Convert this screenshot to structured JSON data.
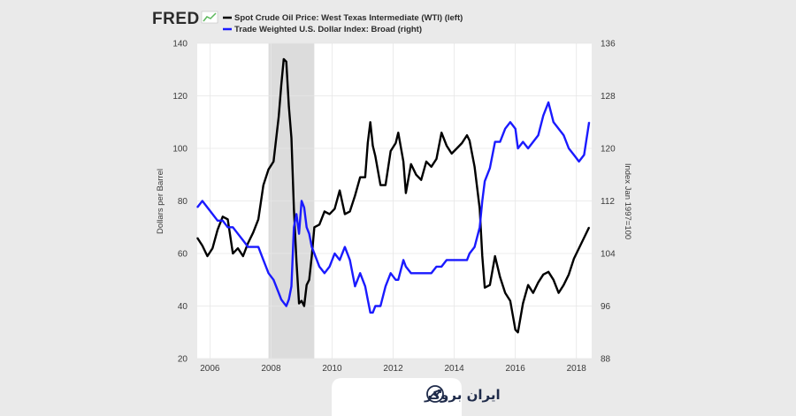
{
  "header": {
    "logo_text": "FRED",
    "legend": [
      {
        "label": "Spot Crude Oil Price: West Texas Intermediate (WTI) (left)",
        "color": "#000000"
      },
      {
        "label": "Trade Weighted U.S. Dollar Index: Broad (right)",
        "color": "#1a1aff"
      }
    ]
  },
  "badge": {
    "text": "ایران بروکر",
    "icon": "growth-chart-icon"
  },
  "chart_data": {
    "type": "line",
    "ylabel_left": "Dollars per Barrel",
    "ylabel_right": "Index Jan 1997=100",
    "x_ticks": [
      "2006",
      "2008",
      "2010",
      "2012",
      "2014",
      "2016",
      "2018"
    ],
    "y_left_ticks": [
      "20",
      "40",
      "60",
      "80",
      "100",
      "120",
      "140"
    ],
    "y_right_ticks": [
      "88",
      "96",
      "104",
      "112",
      "120",
      "128",
      "136"
    ],
    "xlim": [
      "2005-08",
      "2018-07"
    ],
    "ylim_left": [
      20,
      140
    ],
    "ylim_right": [
      88,
      136
    ],
    "recession": {
      "start": "2007-12",
      "end": "2009-06"
    },
    "series": [
      {
        "name": "Spot Crude Oil Price: West Texas Intermediate (WTI) (left)",
        "axis": "left",
        "color": "#000000",
        "x": [
          "2005-08",
          "2005-10",
          "2005-12",
          "2006-02",
          "2006-04",
          "2006-06",
          "2006-08",
          "2006-10",
          "2006-12",
          "2007-02",
          "2007-04",
          "2007-06",
          "2007-08",
          "2007-10",
          "2007-12",
          "2008-02",
          "2008-04",
          "2008-05",
          "2008-06",
          "2008-07",
          "2008-08",
          "2008-09",
          "2008-10",
          "2008-11",
          "2008-12",
          "2009-01",
          "2009-02",
          "2009-03",
          "2009-04",
          "2009-05",
          "2009-06",
          "2009-08",
          "2009-10",
          "2009-12",
          "2010-02",
          "2010-04",
          "2010-06",
          "2010-08",
          "2010-10",
          "2010-12",
          "2011-02",
          "2011-03",
          "2011-04",
          "2011-05",
          "2011-06",
          "2011-08",
          "2011-10",
          "2011-12",
          "2012-02",
          "2012-03",
          "2012-05",
          "2012-06",
          "2012-08",
          "2012-10",
          "2012-12",
          "2013-02",
          "2013-04",
          "2013-06",
          "2013-08",
          "2013-10",
          "2013-12",
          "2014-02",
          "2014-04",
          "2014-06",
          "2014-07",
          "2014-09",
          "2014-11",
          "2014-12",
          "2015-01",
          "2015-03",
          "2015-05",
          "2015-07",
          "2015-09",
          "2015-11",
          "2016-01",
          "2016-02",
          "2016-04",
          "2016-06",
          "2016-08",
          "2016-10",
          "2016-12",
          "2017-02",
          "2017-04",
          "2017-06",
          "2017-08",
          "2017-10",
          "2017-12",
          "2018-02",
          "2018-04",
          "2018-06"
        ],
        "values": [
          66,
          63,
          59,
          62,
          69,
          74,
          73,
          60,
          62,
          59,
          64,
          68,
          73,
          86,
          92,
          95,
          112,
          124,
          134,
          133,
          116,
          104,
          77,
          57,
          41,
          42,
          40,
          48,
          50,
          59,
          70,
          71,
          76,
          75,
          77,
          84,
          75,
          76,
          82,
          89,
          89,
          102,
          110,
          101,
          97,
          86,
          86,
          99,
          102,
          106,
          95,
          83,
          94,
          90,
          88,
          95,
          93,
          96,
          106,
          101,
          98,
          100,
          102,
          105,
          103,
          93,
          77,
          59,
          47,
          48,
          59,
          51,
          45,
          42,
          31,
          30,
          41,
          48,
          45,
          49,
          52,
          53,
          50,
          45,
          48,
          52,
          58,
          62,
          66,
          70
        ]
      },
      {
        "name": "Trade Weighted U.S. Dollar Index: Broad (right)",
        "axis": "right",
        "color": "#1a1aff",
        "x": [
          "2005-08",
          "2005-10",
          "2005-12",
          "2006-02",
          "2006-04",
          "2006-06",
          "2006-08",
          "2006-10",
          "2006-12",
          "2007-02",
          "2007-04",
          "2007-06",
          "2007-08",
          "2007-10",
          "2007-12",
          "2008-02",
          "2008-04",
          "2008-05",
          "2008-06",
          "2008-07",
          "2008-08",
          "2008-09",
          "2008-10",
          "2008-11",
          "2008-12",
          "2009-01",
          "2009-02",
          "2009-03",
          "2009-04",
          "2009-05",
          "2009-06",
          "2009-08",
          "2009-10",
          "2009-12",
          "2010-02",
          "2010-04",
          "2010-06",
          "2010-08",
          "2010-10",
          "2010-12",
          "2011-02",
          "2011-03",
          "2011-04",
          "2011-05",
          "2011-06",
          "2011-08",
          "2011-10",
          "2011-12",
          "2012-02",
          "2012-03",
          "2012-05",
          "2012-06",
          "2012-08",
          "2012-10",
          "2012-12",
          "2013-02",
          "2013-04",
          "2013-06",
          "2013-08",
          "2013-10",
          "2013-12",
          "2014-02",
          "2014-04",
          "2014-06",
          "2014-07",
          "2014-09",
          "2014-11",
          "2014-12",
          "2015-01",
          "2015-03",
          "2015-05",
          "2015-07",
          "2015-09",
          "2015-11",
          "2016-01",
          "2016-02",
          "2016-04",
          "2016-06",
          "2016-08",
          "2016-10",
          "2016-12",
          "2017-02",
          "2017-04",
          "2017-06",
          "2017-08",
          "2017-10",
          "2017-12",
          "2018-02",
          "2018-04",
          "2018-06"
        ],
        "values": [
          111,
          112,
          111,
          110,
          109,
          109,
          108,
          108,
          107,
          106,
          105,
          105,
          105,
          103,
          101,
          100,
          98,
          97,
          96.5,
          96,
          97,
          99,
          108,
          110,
          107,
          112,
          111,
          108,
          107,
          105,
          104,
          102,
          101,
          102,
          104,
          103,
          105,
          103,
          99,
          101,
          99,
          97,
          95,
          95,
          96,
          96,
          99,
          101,
          100,
          100,
          103,
          102,
          101,
          101,
          101,
          101,
          101,
          102,
          102,
          103,
          103,
          103,
          103,
          103,
          104,
          105,
          108,
          112,
          115,
          117,
          121,
          121,
          123,
          124,
          123,
          120,
          121,
          120,
          121,
          122,
          125,
          127,
          124,
          123,
          122,
          120,
          119,
          118,
          119,
          124
        ]
      }
    ]
  }
}
